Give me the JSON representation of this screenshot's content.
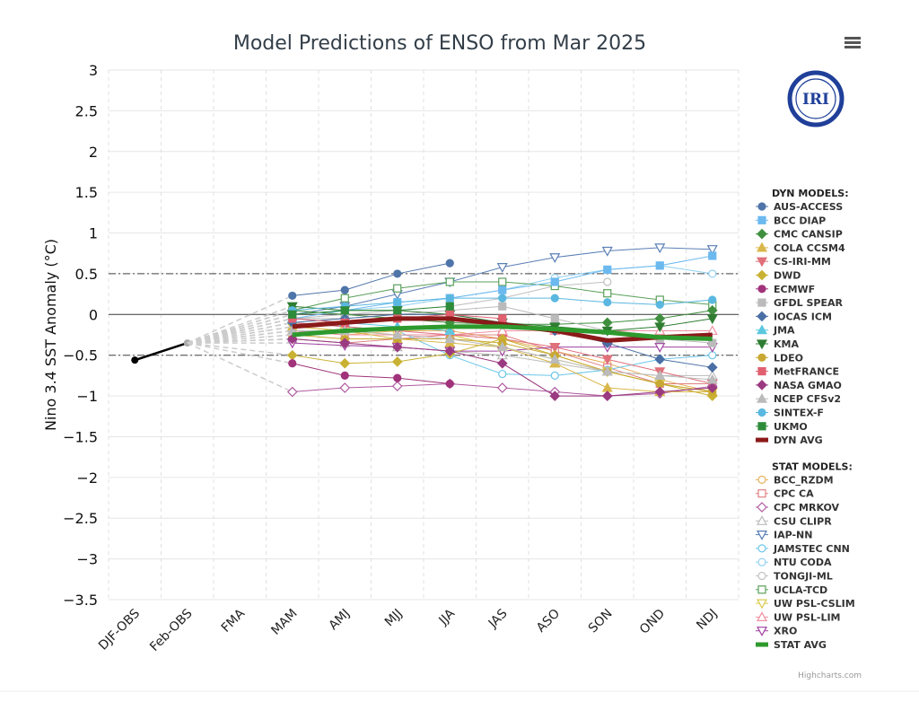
{
  "chart_data": {
    "type": "line",
    "title": "Model Predictions of ENSO from Mar 2025",
    "ylabel": "Nino 3.4 SST Anomaly (°C)",
    "xlabel": "",
    "ylim": [
      -3.5,
      3
    ],
    "yticks": [
      3,
      2.5,
      2,
      1.5,
      1,
      0.5,
      0,
      -0.5,
      -1,
      -1.5,
      -2,
      -2.5,
      -3,
      -3.5
    ],
    "ytick_labels": [
      "3",
      "2.5",
      "2",
      "1.5",
      "1",
      "0.5",
      "0",
      "−0.5",
      "−1",
      "−1.5",
      "−2",
      "−2.5",
      "−3",
      "−3.5"
    ],
    "categories": [
      "DJF-OBS",
      "Feb-OBS",
      "FMA",
      "MAM",
      "AMJ",
      "MJJ",
      "JJA",
      "JAS",
      "ASO",
      "SON",
      "OND",
      "NDJ"
    ],
    "reference_lines": [
      0.5,
      0,
      -0.5
    ],
    "observed": {
      "x": [
        "DJF-OBS",
        "Feb-OBS"
      ],
      "values": [
        -0.56,
        -0.35
      ],
      "color": "#000000"
    },
    "legend_placement": "right",
    "dyn_header": "DYN MODELS:",
    "stat_header": "STAT MODELS:",
    "dyn_models": [
      {
        "name": "AUS-ACCESS",
        "color": "#4f74a9",
        "marker": "circle",
        "values": [
          0.23,
          0.3,
          0.5,
          0.63,
          null,
          null,
          null,
          null,
          null
        ]
      },
      {
        "name": "BCC DIAP",
        "color": "#6bb9ef",
        "marker": "square",
        "values": [
          -0.05,
          0.05,
          0.15,
          0.2,
          0.3,
          0.4,
          0.55,
          0.6,
          0.72
        ]
      },
      {
        "name": "CMC CANSIP",
        "color": "#3f8f3f",
        "marker": "diamond",
        "values": [
          0.05,
          0.0,
          -0.05,
          -0.1,
          -0.12,
          -0.12,
          -0.1,
          -0.05,
          0.05
        ]
      },
      {
        "name": "COLA CCSM4",
        "color": "#d9b74a",
        "marker": "triangle",
        "values": [
          -0.15,
          -0.2,
          -0.3,
          -0.35,
          -0.4,
          -0.6,
          -0.9,
          -0.95,
          -0.95
        ]
      },
      {
        "name": "CS-IRI-MM",
        "color": "#e0707a",
        "marker": "triangle-down",
        "values": [
          -0.1,
          -0.15,
          -0.2,
          -0.25,
          -0.3,
          -0.4,
          -0.55,
          -0.7,
          -0.85
        ]
      },
      {
        "name": "DWD",
        "color": "#c9b233",
        "marker": "diamond",
        "values": [
          -0.5,
          -0.6,
          -0.58,
          -0.48,
          -0.3,
          -0.5,
          -0.7,
          -0.85,
          -1.0
        ]
      },
      {
        "name": "ECMWF",
        "color": "#a0337a",
        "marker": "circle",
        "values": [
          -0.6,
          -0.75,
          -0.78,
          -0.85,
          null,
          null,
          null,
          null,
          null
        ]
      },
      {
        "name": "GFDL SPEAR",
        "color": "#bbbbbb",
        "marker": "square",
        "values": [
          -0.05,
          -0.05,
          0.0,
          0.05,
          0.1,
          -0.05,
          -0.2,
          -0.3,
          -0.35
        ]
      },
      {
        "name": "IOCAS ICM",
        "color": "#4a6fa5",
        "marker": "diamond",
        "values": [
          -0.1,
          -0.05,
          0.0,
          0.0,
          -0.1,
          -0.2,
          -0.35,
          -0.55,
          -0.65
        ]
      },
      {
        "name": "JMA",
        "color": "#5cc8e0",
        "marker": "triangle",
        "values": [
          -0.05,
          -0.1,
          -0.15,
          -0.2,
          null,
          null,
          null,
          null,
          null
        ]
      },
      {
        "name": "KMA",
        "color": "#2e7d32",
        "marker": "triangle-down",
        "values": [
          0.1,
          0.05,
          0.05,
          0.0,
          -0.1,
          -0.15,
          -0.2,
          -0.15,
          -0.05
        ]
      },
      {
        "name": "LDEO",
        "color": "#c8a832",
        "marker": "circle",
        "values": [
          -0.25,
          -0.3,
          -0.3,
          -0.3,
          -0.35,
          -0.5,
          -0.7,
          -0.85,
          -0.95
        ]
      },
      {
        "name": "MetFRANCE",
        "color": "#e06070",
        "marker": "square",
        "values": [
          -0.05,
          -0.1,
          -0.05,
          0.0,
          -0.05,
          null,
          null,
          null,
          null
        ]
      },
      {
        "name": "NASA GMAO",
        "color": "#9a3a80",
        "marker": "diamond",
        "values": [
          -0.3,
          -0.35,
          -0.4,
          -0.45,
          -0.6,
          -1.0,
          -1.0,
          -0.95,
          -0.9
        ]
      },
      {
        "name": "NCEP CFSv2",
        "color": "#bbbbbb",
        "marker": "triangle",
        "values": [
          -0.2,
          -0.2,
          -0.25,
          -0.3,
          -0.4,
          -0.55,
          -0.7,
          -0.75,
          -0.8
        ]
      },
      {
        "name": "SINTEX-F",
        "color": "#5ab8e0",
        "marker": "circle",
        "values": [
          0.05,
          0.1,
          0.15,
          0.2,
          0.2,
          0.2,
          0.15,
          0.12,
          0.18
        ]
      },
      {
        "name": "UKMO",
        "color": "#2e8b3a",
        "marker": "square",
        "values": [
          0.0,
          0.05,
          0.05,
          0.1,
          null,
          null,
          null,
          null,
          null
        ]
      }
    ],
    "dyn_avg": {
      "name": "DYN AVG",
      "color": "#8b1a1a",
      "values": [
        -0.15,
        -0.1,
        -0.05,
        -0.05,
        -0.12,
        -0.2,
        -0.32,
        -0.28,
        -0.25
      ]
    },
    "stat_models": [
      {
        "name": "BCC_RZDM",
        "color": "#e8b05a",
        "marker": "circle",
        "values": [
          -0.2,
          -0.25,
          -0.2,
          -0.2,
          -0.3,
          -0.45,
          -0.6,
          -0.8,
          -0.95
        ]
      },
      {
        "name": "CPC CA",
        "color": "#e08080",
        "marker": "square",
        "values": [
          -0.3,
          -0.35,
          -0.3,
          -0.25,
          -0.25,
          -0.45,
          -0.65,
          -0.85,
          -0.85
        ]
      },
      {
        "name": "CPC MRKOV",
        "color": "#b05aa0",
        "marker": "diamond",
        "values": [
          -0.95,
          -0.9,
          -0.88,
          -0.85,
          -0.9,
          -0.95,
          -1.0,
          -0.97,
          -0.88
        ]
      },
      {
        "name": "CSU CLIPR",
        "color": "#bbbbbb",
        "marker": "triangle",
        "values": [
          -0.3,
          -0.35,
          -0.4,
          -0.45,
          -0.5,
          -0.6,
          -0.7,
          -0.75,
          -0.75
        ]
      },
      {
        "name": "IAP-NN",
        "color": "#5a7fb5",
        "marker": "triangle-down",
        "values": [
          0.0,
          0.1,
          0.25,
          0.4,
          0.58,
          0.7,
          0.78,
          0.82,
          0.8
        ]
      },
      {
        "name": "JAMSTEC CNN",
        "color": "#6cc6ea",
        "marker": "circle",
        "values": [
          -0.1,
          -0.15,
          -0.2,
          -0.5,
          -0.73,
          -0.75,
          -0.68,
          -0.55,
          -0.5
        ]
      },
      {
        "name": "NTU CODA",
        "color": "#8fd0f0",
        "marker": "circle",
        "values": [
          0.0,
          0.05,
          0.1,
          0.2,
          0.3,
          0.45,
          0.55,
          0.6,
          0.5
        ]
      },
      {
        "name": "TONGJI-ML",
        "color": "#c0c0c0",
        "marker": "circle",
        "values": [
          -0.05,
          0.0,
          0.05,
          0.1,
          0.2,
          0.35,
          0.4,
          null,
          null
        ]
      },
      {
        "name": "UCLA-TCD",
        "color": "#5aa05a",
        "marker": "square",
        "values": [
          0.05,
          0.2,
          0.32,
          0.4,
          0.4,
          0.35,
          0.26,
          0.18,
          0.12
        ]
      },
      {
        "name": "UW PSL-CSLIM",
        "color": "#d8cc50",
        "marker": "triangle-down",
        "values": [
          -0.15,
          -0.2,
          -0.25,
          -0.25,
          -0.4,
          -0.55,
          -0.7,
          -0.85,
          -0.95
        ]
      },
      {
        "name": "UW PSL-LIM",
        "color": "#f090a0",
        "marker": "triangle",
        "values": [
          -0.2,
          -0.25,
          -0.25,
          -0.25,
          -0.2,
          -0.2,
          -0.2,
          -0.2,
          -0.2
        ]
      },
      {
        "name": "XRO",
        "color": "#a040a0",
        "marker": "triangle-down",
        "values": [
          -0.35,
          -0.38,
          -0.4,
          -0.45,
          -0.45,
          -0.4,
          -0.4,
          -0.4,
          -0.4
        ]
      }
    ],
    "stat_avg": {
      "name": "STAT AVG",
      "color": "#2e9a2e",
      "values": [
        -0.25,
        -0.2,
        -0.17,
        -0.15,
        -0.15,
        -0.18,
        -0.22,
        -0.28,
        -0.3
      ]
    }
  },
  "logo": {
    "text": "IRI",
    "colors": {
      "ring": "#1f3f99"
    }
  },
  "credits": "Highcharts.com",
  "menu_icon": "hamburger-menu-icon"
}
